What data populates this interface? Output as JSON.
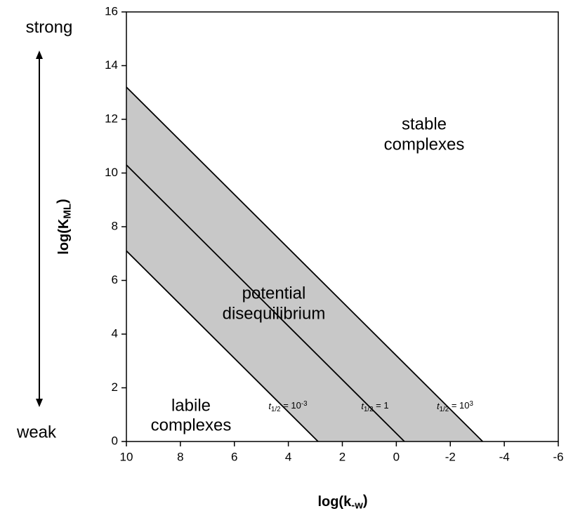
{
  "chart_data": {
    "type": "line",
    "xlim": [
      10,
      -6
    ],
    "ylim": [
      0,
      16
    ],
    "xticks": [
      10,
      8,
      6,
      4,
      2,
      0,
      -2,
      -4,
      -6
    ],
    "yticks": [
      0,
      2,
      4,
      6,
      8,
      10,
      12,
      14,
      16
    ],
    "x_label": [
      {
        "text": "log(k"
      },
      {
        "text": "-w",
        "style": "sub"
      },
      {
        "text": ")"
      }
    ],
    "y_label": [
      {
        "text": "log(K"
      },
      {
        "text": "ML",
        "style": "sub"
      },
      {
        "text": ")"
      }
    ],
    "fill_between": [
      0,
      2
    ],
    "fill_color": "#c8c8c8",
    "series": [
      {
        "label": [
          {
            "text": "t",
            "style": "italic"
          },
          {
            "text": "1/2",
            "style": "sub"
          },
          {
            "text": " = 10"
          },
          {
            "text": "3",
            "style": "sup"
          }
        ],
        "color": "#000000",
        "x": [
          10,
          -3.2
        ],
        "values": [
          13.2,
          0
        ]
      },
      {
        "label": [
          {
            "text": "t",
            "style": "italic"
          },
          {
            "text": "1/2",
            "style": "sub"
          },
          {
            "text": " = 1"
          }
        ],
        "color": "#000000",
        "x": [
          10,
          -0.3
        ],
        "values": [
          10.3,
          0
        ]
      },
      {
        "label": [
          {
            "text": "t",
            "style": "italic"
          },
          {
            "text": "1/2",
            "style": "sub"
          },
          {
            "text": " = 10"
          },
          {
            "text": "-3",
            "style": "sup"
          }
        ],
        "color": "#000000",
        "x": [
          10,
          2.9
        ],
        "values": [
          7.1,
          0
        ]
      }
    ],
    "annotations": {
      "strong": "strong",
      "weak": "weak",
      "stable": [
        "stable",
        "complexes"
      ],
      "potential": [
        "potential",
        "disequilibrium"
      ],
      "labile": [
        "labile",
        "complexes"
      ]
    }
  }
}
